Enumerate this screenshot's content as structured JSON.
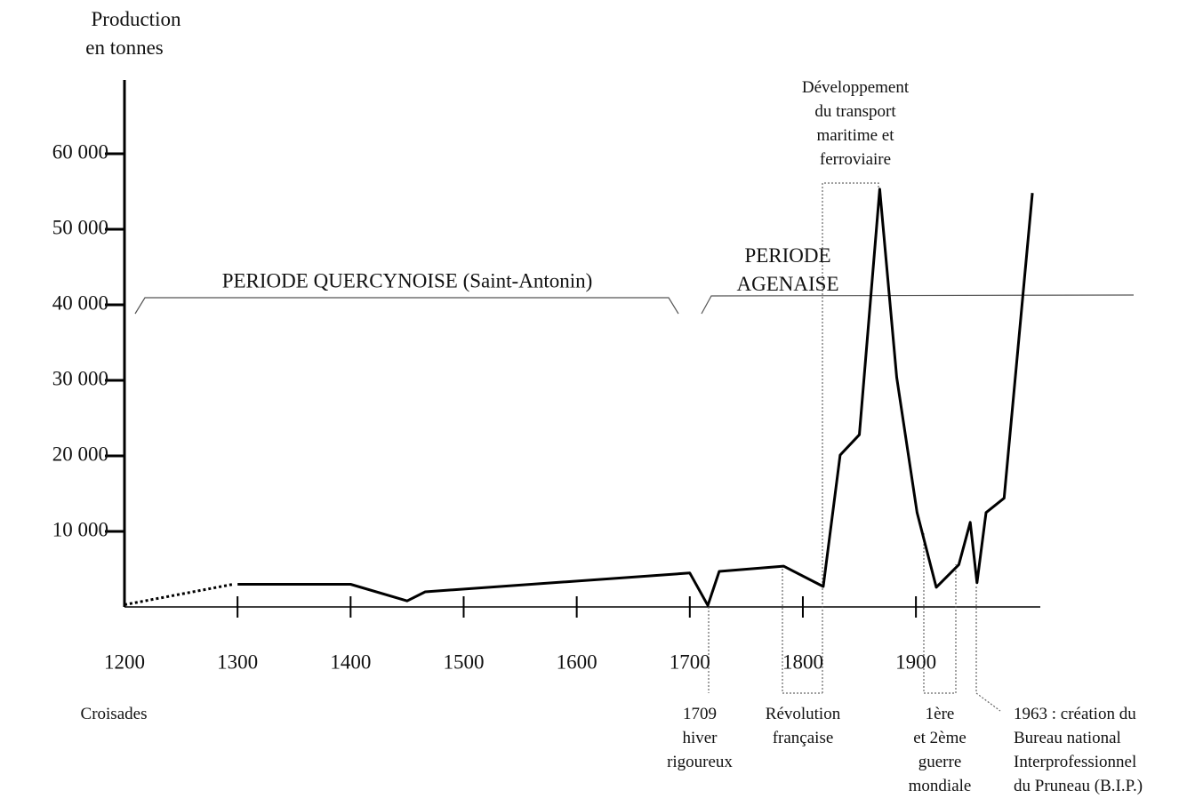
{
  "chart_data": {
    "type": "line",
    "ylabel": [
      "Production",
      "en tonnes"
    ],
    "xlim": [
      1200,
      2010
    ],
    "ylim": [
      0,
      70000
    ],
    "xticks": [
      1200,
      1300,
      1400,
      1500,
      1600,
      1700,
      1800,
      1900
    ],
    "yticks": [
      {
        "value": 10000,
        "label": "10 000"
      },
      {
        "value": 20000,
        "label": "20 000"
      },
      {
        "value": 30000,
        "label": "30 000"
      },
      {
        "value": 40000,
        "label": "40 000"
      },
      {
        "value": 50000,
        "label": "50 000"
      },
      {
        "value": 60000,
        "label": "60 000"
      }
    ],
    "series": [
      {
        "color": "#000000",
        "dotted": true,
        "x": [
          1200,
          1296
        ],
        "values": [
          300,
          3000
        ]
      },
      {
        "color": "#000000",
        "dotted": false,
        "x": [
          1300,
          1400,
          1450,
          1466,
          1700,
          1716,
          1726,
          1783,
          1818,
          1833,
          1850,
          1868,
          1883,
          1901,
          1918,
          1938,
          1948,
          1954,
          1962,
          1978,
          2003
        ],
        "values": [
          3000,
          3000,
          800,
          2000,
          4500,
          200,
          4700,
          5400,
          2700,
          20100,
          22800,
          55300,
          30400,
          12500,
          2600,
          5600,
          11200,
          3200,
          12500,
          14400,
          54800
        ]
      }
    ],
    "periods": [
      "PERIODE QUERCYNOISE (Saint-Antonin)",
      [
        "PERIODE",
        "AGENAISE"
      ]
    ],
    "annotations": [
      [
        "Croisades"
      ],
      [
        "1709",
        "hiver",
        "rigoureux"
      ],
      [
        "Révolution",
        "française"
      ],
      [
        "Développement",
        "du transport",
        "maritime et",
        "ferroviaire"
      ],
      [
        "1ère",
        "et 2ème",
        "guerre",
        "mondiale"
      ],
      [
        "1963 : création du",
        "Bureau national",
        "Interprofessionnel",
        "du Pruneau (B.I.P.)"
      ]
    ]
  }
}
